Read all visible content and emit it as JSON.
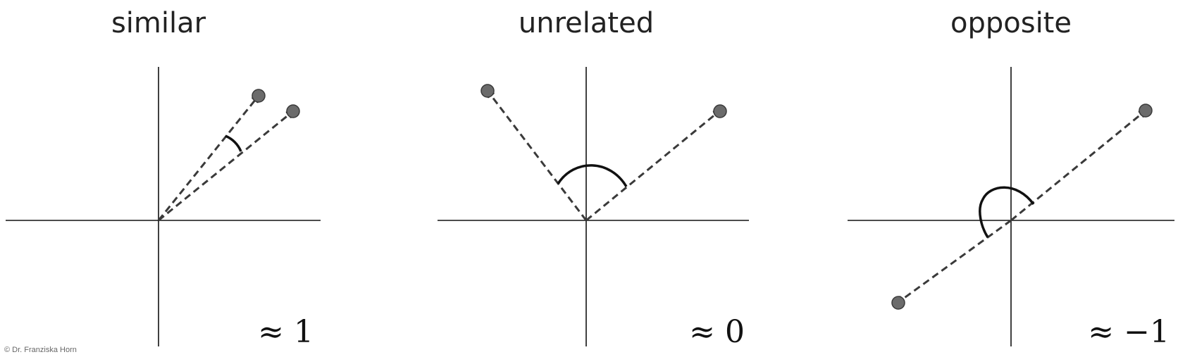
{
  "panels": [
    {
      "title": "similar",
      "value_label": "≈ 1",
      "vectors": [
        {
          "angle_deg": 60
        },
        {
          "angle_deg": 48
        }
      ],
      "angle_between_deg": 12
    },
    {
      "title": "unrelated",
      "value_label": "≈ 0",
      "vectors": [
        {
          "angle_deg": 129
        },
        {
          "angle_deg": 39
        }
      ],
      "angle_between_deg": 90
    },
    {
      "title": "opposite",
      "value_label": "≈ −1",
      "vectors": [
        {
          "angle_deg": 39
        },
        {
          "angle_deg": 219
        }
      ],
      "angle_between_deg": 180
    }
  ],
  "copyright": "© Dr. Franziska Horn",
  "colors": {
    "vector": "#3a3a3a",
    "point_fill": "#6b6b6b",
    "axis": "#111111",
    "arc": "#111111"
  }
}
